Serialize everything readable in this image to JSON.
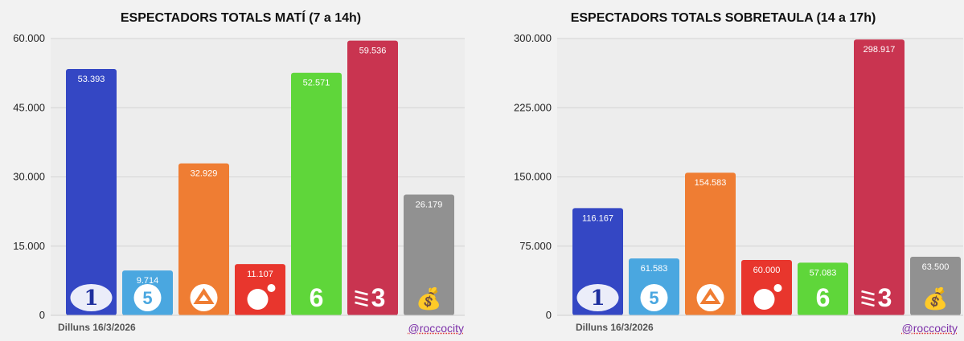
{
  "footer": {
    "date": "Dilluns 16/3/2026",
    "handle": "@roccocity"
  },
  "channels": [
    {
      "icon": "la1-logo-icon",
      "glyph": "1",
      "color": "#3447c4"
    },
    {
      "icon": "telecinco-logo-icon",
      "glyph": "5",
      "color": "#4aa7e0"
    },
    {
      "icon": "antena3-logo-icon",
      "glyph": "A",
      "color": "#ef7d33"
    },
    {
      "icon": "cuatro-logo-icon",
      "glyph": "●",
      "color": "#e8362d"
    },
    {
      "icon": "lasexta-logo-icon",
      "glyph": "6",
      "color": "#5fd63a"
    },
    {
      "icon": "tv3-logo-icon",
      "glyph": "3",
      "color": "#c93450"
    },
    {
      "icon": "money-bag-icon",
      "glyph": "💰",
      "color": "#919191"
    }
  ],
  "chart_data": [
    {
      "type": "bar",
      "title": "ESPECTADORS TOTALS MATÍ (7 a 14h)",
      "categories": [
        "La 1",
        "Telecinco",
        "Antena 3",
        "Cuatro",
        "laSexta",
        "TV3",
        "Altres"
      ],
      "values": [
        53393,
        9714,
        32929,
        11107,
        52571,
        59536,
        26179
      ],
      "value_labels": [
        "53.393",
        "9.714",
        "32.929",
        "11.107",
        "52.571",
        "59.536",
        "26.179"
      ],
      "ylim": [
        0,
        60000
      ],
      "yticks": [
        0,
        15000,
        30000,
        45000,
        60000
      ],
      "ytick_labels": [
        "0",
        "15.000",
        "30.000",
        "45.000",
        "60.000"
      ],
      "xlabel": "",
      "ylabel": "",
      "grid": true
    },
    {
      "type": "bar",
      "title": "ESPECTADORS TOTALS SOBRETAULA (14 a 17h)",
      "categories": [
        "La 1",
        "Telecinco",
        "Antena 3",
        "Cuatro",
        "laSexta",
        "TV3",
        "Altres"
      ],
      "values": [
        116167,
        61583,
        154583,
        60000,
        57083,
        298917,
        63500
      ],
      "value_labels": [
        "116.167",
        "61.583",
        "154.583",
        "60.000",
        "57.083",
        "298.917",
        "63.500"
      ],
      "ylim": [
        0,
        300000
      ],
      "yticks": [
        0,
        75000,
        150000,
        225000,
        300000
      ],
      "ytick_labels": [
        "0",
        "75.000",
        "150.000",
        "225.000",
        "300.000"
      ],
      "xlabel": "",
      "ylabel": "",
      "grid": true
    }
  ]
}
